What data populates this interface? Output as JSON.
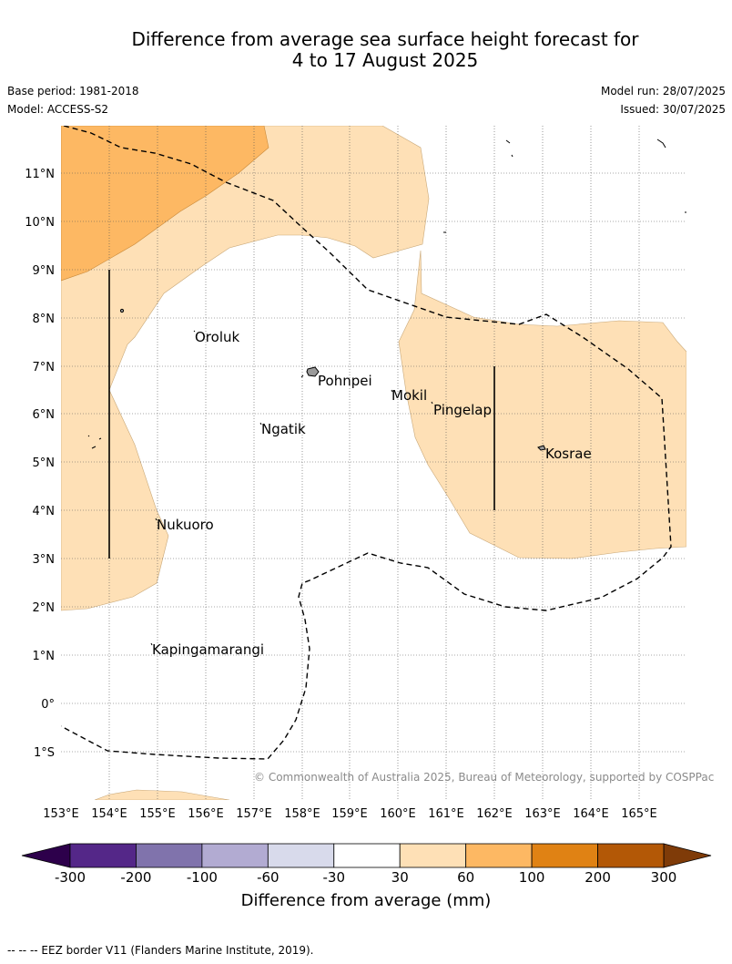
{
  "title_line1": "Difference from average sea surface height forecast for",
  "title_line2": "4 to 17 August 2025",
  "base_period": "Base period: 1981-2018",
  "model": "Model: ACCESS-S2",
  "model_run": "Model run: 28/07/2025",
  "issued": "Issued: 30/07/2025",
  "credit": "© Commonwealth of Australia 2025, Bureau of Meteorology, supported by COSPPac",
  "map": {
    "lon_labels": [
      "153°E",
      "154°E",
      "155°E",
      "156°E",
      "157°E",
      "158°E",
      "159°E",
      "160°E",
      "161°E",
      "162°E",
      "163°E",
      "164°E",
      "165°E"
    ],
    "lat_labels": [
      "11°N",
      "10°N",
      "9°N",
      "8°N",
      "7°N",
      "6°N",
      "5°N",
      "4°N",
      "3°N",
      "2°N",
      "1°N",
      "0°",
      "1°S"
    ],
    "places": [
      {
        "name": "Oroluk",
        "lon": 155.8,
        "lat": 7.6
      },
      {
        "name": "Pohnpei",
        "lon": 158.3,
        "lat": 6.9
      },
      {
        "name": "Mokil",
        "lon": 159.8,
        "lat": 6.7
      },
      {
        "name": "Pingelap",
        "lon": 160.7,
        "lat": 6.2
      },
      {
        "name": "Ngatik",
        "lon": 157.3,
        "lat": 5.8
      },
      {
        "name": "Kosrae",
        "lon": 163.0,
        "lat": 5.3
      },
      {
        "name": "Nukuoro",
        "lon": 155.0,
        "lat": 3.8
      },
      {
        "name": "Kapingamarangi",
        "lon": 154.8,
        "lat": 1.1
      }
    ]
  },
  "colorbar": {
    "title": "Difference from average (mm)",
    "tick_labels": [
      "-300",
      "-200",
      "-100",
      "-60",
      "-30",
      "30",
      "60",
      "100",
      "200",
      "300"
    ],
    "colors": [
      "#542788",
      "#8073ac",
      "#b2abd2",
      "#d8daeb",
      "#ffffff",
      "#fee0b6",
      "#fdb863",
      "#e08214",
      "#b35806"
    ],
    "under_color": "#2d004b",
    "over_color": "#7f3b08"
  },
  "colors": {
    "level_30_60": "#fee0b6",
    "level_60_100": "#fdb863"
  },
  "footnote": "-- -- -- EEZ border V11 (Flanders Marine Institute, 2019)."
}
